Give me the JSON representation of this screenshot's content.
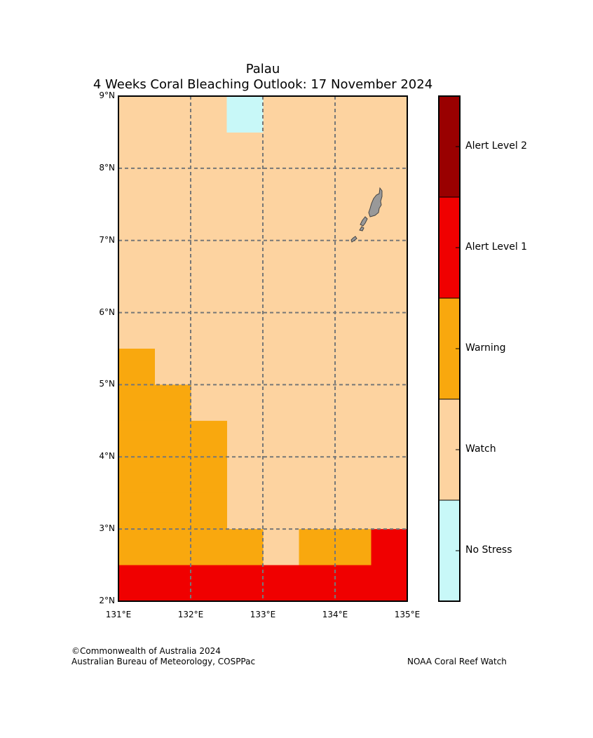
{
  "header": {
    "title_line1": "Palau",
    "title_line2": "4 Weeks Coral Bleaching Outlook: 17 November 2024"
  },
  "map": {
    "lon_range": [
      131,
      135
    ],
    "lat_range": [
      2,
      9
    ],
    "x_ticks": [
      "131°E",
      "132°E",
      "133°E",
      "134°E",
      "135°E"
    ],
    "y_ticks": [
      "2°N",
      "3°N",
      "4°N",
      "5°N",
      "6°N",
      "7°N",
      "8°N",
      "9°N"
    ],
    "gridlines": "dashed",
    "cell_size_deg": 0.5,
    "background_level": "Watch",
    "cells": [
      {
        "lon": 132.5,
        "lat": 8.5,
        "level": "No Stress"
      },
      {
        "lon": 131.0,
        "lat": 5.0,
        "level": "Warning"
      },
      {
        "lon": 131.0,
        "lat": 4.5,
        "level": "Warning"
      },
      {
        "lon": 131.5,
        "lat": 4.5,
        "level": "Warning"
      },
      {
        "lon": 131.0,
        "lat": 4.0,
        "level": "Warning"
      },
      {
        "lon": 131.5,
        "lat": 4.0,
        "level": "Warning"
      },
      {
        "lon": 132.0,
        "lat": 4.0,
        "level": "Warning"
      },
      {
        "lon": 131.0,
        "lat": 3.5,
        "level": "Warning"
      },
      {
        "lon": 131.5,
        "lat": 3.5,
        "level": "Warning"
      },
      {
        "lon": 132.0,
        "lat": 3.5,
        "level": "Warning"
      },
      {
        "lon": 131.0,
        "lat": 3.0,
        "level": "Warning"
      },
      {
        "lon": 131.5,
        "lat": 3.0,
        "level": "Warning"
      },
      {
        "lon": 132.0,
        "lat": 3.0,
        "level": "Warning"
      },
      {
        "lon": 131.0,
        "lat": 2.5,
        "level": "Warning"
      },
      {
        "lon": 131.5,
        "lat": 2.5,
        "level": "Warning"
      },
      {
        "lon": 132.0,
        "lat": 2.5,
        "level": "Warning"
      },
      {
        "lon": 132.5,
        "lat": 2.5,
        "level": "Warning"
      },
      {
        "lon": 133.5,
        "lat": 2.5,
        "level": "Warning"
      },
      {
        "lon": 134.0,
        "lat": 2.5,
        "level": "Warning"
      },
      {
        "lon": 134.5,
        "lat": 2.5,
        "level": "Alert Level 1"
      },
      {
        "lon": 131.0,
        "lat": 2.0,
        "level": "Alert Level 1"
      },
      {
        "lon": 131.5,
        "lat": 2.0,
        "level": "Alert Level 1"
      },
      {
        "lon": 132.0,
        "lat": 2.0,
        "level": "Alert Level 1"
      },
      {
        "lon": 132.5,
        "lat": 2.0,
        "level": "Alert Level 1"
      },
      {
        "lon": 133.0,
        "lat": 2.0,
        "level": "Alert Level 1"
      },
      {
        "lon": 133.5,
        "lat": 2.0,
        "level": "Alert Level 1"
      },
      {
        "lon": 134.0,
        "lat": 2.0,
        "level": "Alert Level 1"
      },
      {
        "lon": 134.5,
        "lat": 2.0,
        "level": "Alert Level 1"
      }
    ],
    "land_color": "#999999"
  },
  "legend": {
    "levels": [
      {
        "label": "No Stress",
        "color": "#c8f8f8"
      },
      {
        "label": "Watch",
        "color": "#fdd3a0"
      },
      {
        "label": "Warning",
        "color": "#f9a80e"
      },
      {
        "label": "Alert Level 1",
        "color": "#f00000"
      },
      {
        "label": "Alert Level 2",
        "color": "#990000"
      }
    ]
  },
  "footer": {
    "copyright_line1": "©Commonwealth of Australia 2024",
    "copyright_line2": "Australian Bureau of Meteorology, COSPPac",
    "source": "NOAA Coral Reef Watch"
  }
}
